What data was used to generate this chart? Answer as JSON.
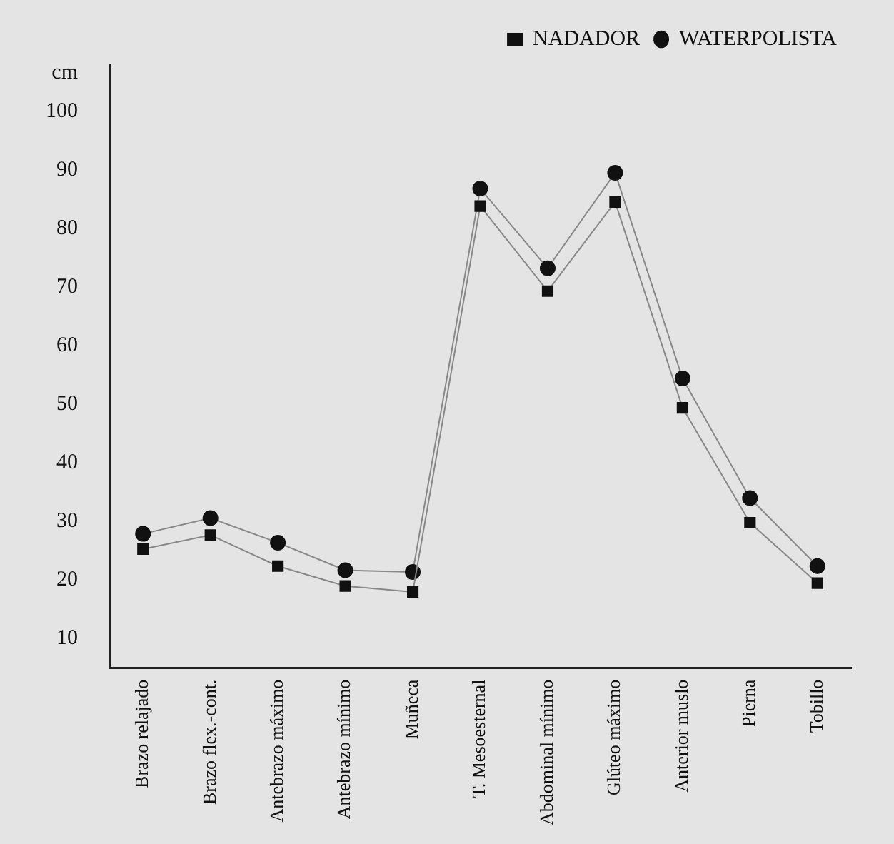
{
  "chart_data": {
    "type": "line",
    "ylabel": "cm",
    "categories": [
      "Brazo relajado",
      "Brazo flex.-cont.",
      "Antebrazo máximo",
      "Antebrazo mínimo",
      "Muñeca",
      "T. Mesoesternal",
      "Abdominal mínimo",
      "Glúteo máximo",
      "Anterior muslo",
      "Pierna",
      "Tobillo"
    ],
    "series": [
      {
        "name": "NADADOR",
        "color": "#111111",
        "marker": "square",
        "values": [
          25.3,
          27.7,
          22.4,
          19.0,
          18.0,
          83.8,
          69.3,
          84.5,
          49.4,
          29.8,
          19.5
        ]
      },
      {
        "name": "WATERPOLISTA",
        "color": "#111111",
        "marker": "circle",
        "values": [
          27.9,
          30.6,
          26.4,
          21.7,
          21.4,
          86.8,
          73.2,
          89.5,
          54.4,
          34.0,
          22.4
        ]
      }
    ],
    "ylim": [
      5,
      108
    ],
    "yticks": [
      10,
      20,
      30,
      40,
      50,
      60,
      70,
      80,
      90,
      100
    ],
    "grid": false,
    "legend": "top right",
    "line_style": "solid"
  }
}
